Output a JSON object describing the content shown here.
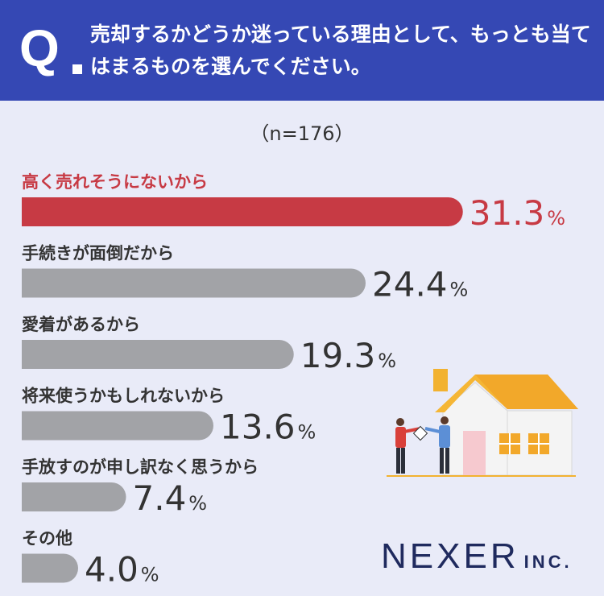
{
  "header": {
    "q_label": "Q",
    "question": "売却するかどうか迷っている理由として、もっとも当てはまるものを選んでください。"
  },
  "sample_size": "（n=176）",
  "logo": {
    "main": "NEXER",
    "sub": "INC."
  },
  "colors": {
    "header_bg": "#3548b4",
    "highlight": "#c73a44",
    "bar": "#a2a3a7",
    "bg": "#e9ebf8"
  },
  "chart_data": {
    "type": "bar",
    "orientation": "horizontal",
    "categories": [
      "高く売れそうにないから",
      "手続きが面倒だから",
      "愛着があるから",
      "将来使うかもしれないから",
      "手放すのが申し訳なく思うから",
      "その他"
    ],
    "values": [
      31.3,
      24.4,
      19.3,
      13.6,
      7.4,
      4.0
    ],
    "value_labels": [
      "31.3",
      "24.4",
      "19.3",
      "13.6",
      "7.4",
      "4.0"
    ],
    "unit": "%",
    "highlight_index": 0,
    "title": "",
    "xlabel": "",
    "ylabel": "",
    "grid": false,
    "legend": "none"
  }
}
